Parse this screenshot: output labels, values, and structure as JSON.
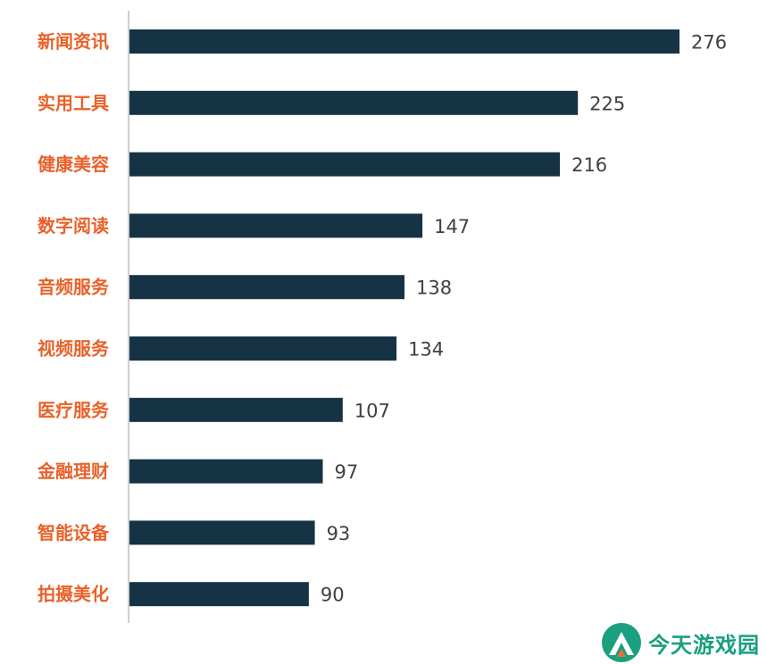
{
  "chart_data": {
    "type": "bar",
    "orientation": "horizontal",
    "categories": [
      "新闻资讯",
      "实用工具",
      "健康美容",
      "数字阅读",
      "音频服务",
      "视频服务",
      "医疗服务",
      "金融理财",
      "智能设备",
      "拍摄美化"
    ],
    "values": [
      276,
      225,
      216,
      147,
      138,
      134,
      107,
      97,
      93,
      90
    ],
    "title": "",
    "xlabel": "",
    "ylabel": "",
    "xlim": [
      0,
      276
    ],
    "grid": false,
    "legend": "none",
    "data_labels": true
  },
  "colors": {
    "bar": "#163245",
    "category_label": "#e8622a",
    "value_label": "#404040",
    "axis_line": "#bfbfbf",
    "watermark_green": "#1a9f7f",
    "watermark_orange": "#f26b3a"
  },
  "watermark": {
    "text": "今天游戏园",
    "icon": "mountain-logo-icon"
  }
}
